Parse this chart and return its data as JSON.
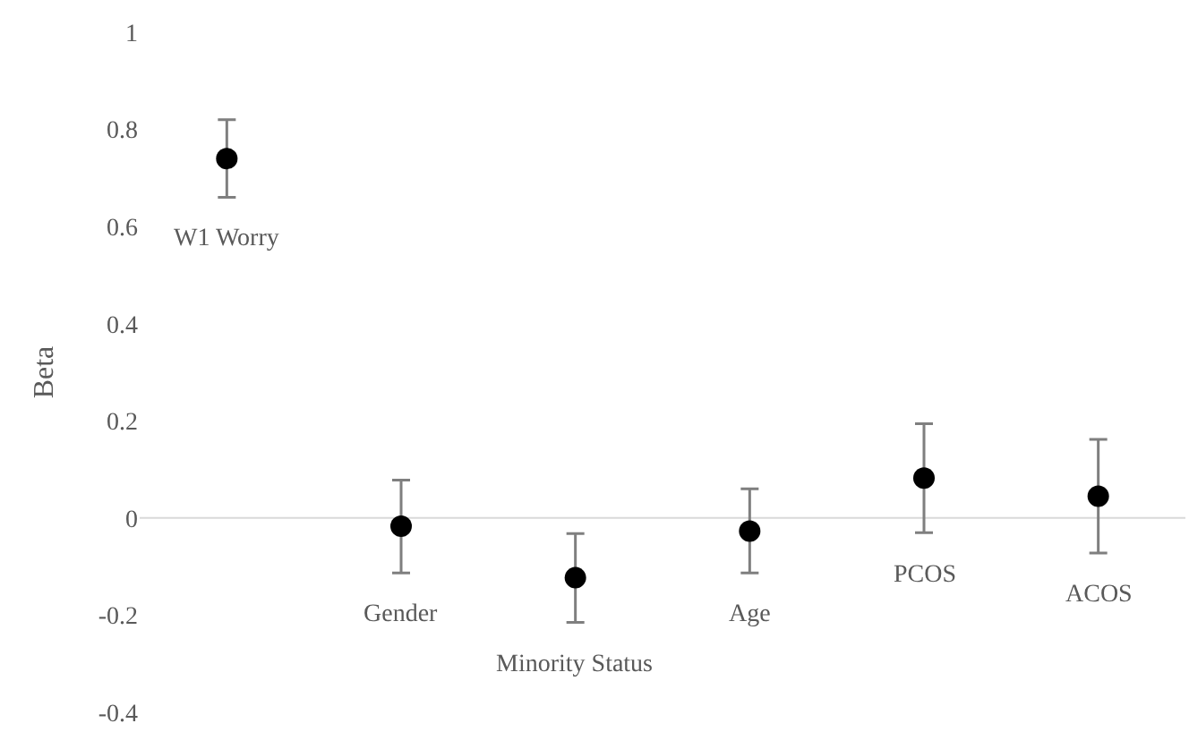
{
  "chart_data": {
    "type": "scatter",
    "ylabel": "Beta",
    "categories": [
      "W1 Worry",
      "Gender",
      "Minority Status",
      "Age",
      "PCOS",
      "ACOS"
    ],
    "values": [
      0.74,
      -0.017,
      -0.123,
      -0.027,
      0.082,
      0.045
    ],
    "errors": [
      [
        0.66,
        0.82
      ],
      [
        -0.113,
        0.078
      ],
      [
        -0.215,
        -0.032
      ],
      [
        -0.113,
        0.06
      ],
      [
        -0.03,
        0.194
      ],
      [
        -0.072,
        0.162
      ]
    ],
    "color": "#000000",
    "marker": "circle",
    "ylim": [
      -0.4,
      1
    ],
    "yticks": [
      -0.4,
      -0.2,
      0,
      0.2,
      0.4,
      0.6,
      0.8,
      1
    ],
    "ref_lines": [
      {
        "axis": "y",
        "value": 0,
        "color": "#d9d9d9"
      }
    ],
    "grid": false,
    "tick_labels": "y"
  }
}
